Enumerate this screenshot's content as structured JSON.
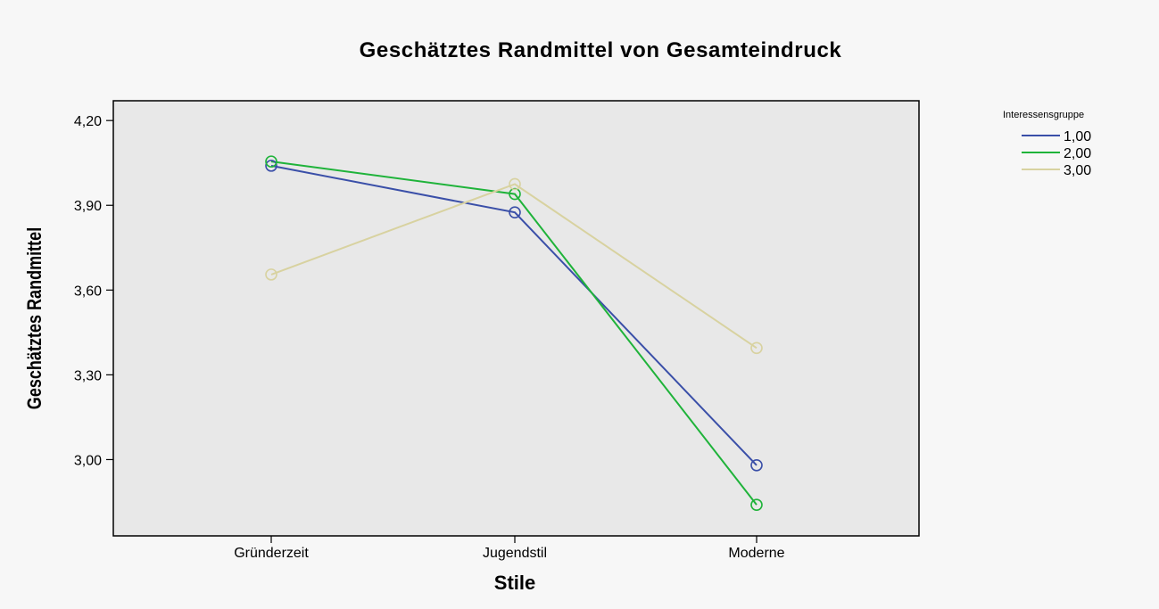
{
  "chart_data": {
    "type": "line",
    "title": "Geschätztes Randmittel von Gesamteindruck",
    "xlabel": "Stile",
    "ylabel": "Geschätztes Randmittel",
    "categories": [
      "Gründerzeit",
      "Jugendstil",
      "Moderne"
    ],
    "ylim": [
      2.73,
      4.27
    ],
    "yticks": [
      3.0,
      3.3,
      3.6,
      3.9,
      4.2
    ],
    "ytick_labels": [
      "3,00",
      "3,30",
      "3,60",
      "3,90",
      "4,20"
    ],
    "grid": false,
    "legend": {
      "title": "Interessensgruppe",
      "position": "top-right"
    },
    "series": [
      {
        "name": "1,00",
        "color": "#3a4fa8",
        "values": [
          4.04,
          3.875,
          2.98
        ]
      },
      {
        "name": "2,00",
        "color": "#1fb33a",
        "values": [
          4.055,
          3.94,
          2.84
        ]
      },
      {
        "name": "3,00",
        "color": "#d8d2a0",
        "values": [
          3.655,
          3.975,
          3.395
        ]
      }
    ]
  }
}
